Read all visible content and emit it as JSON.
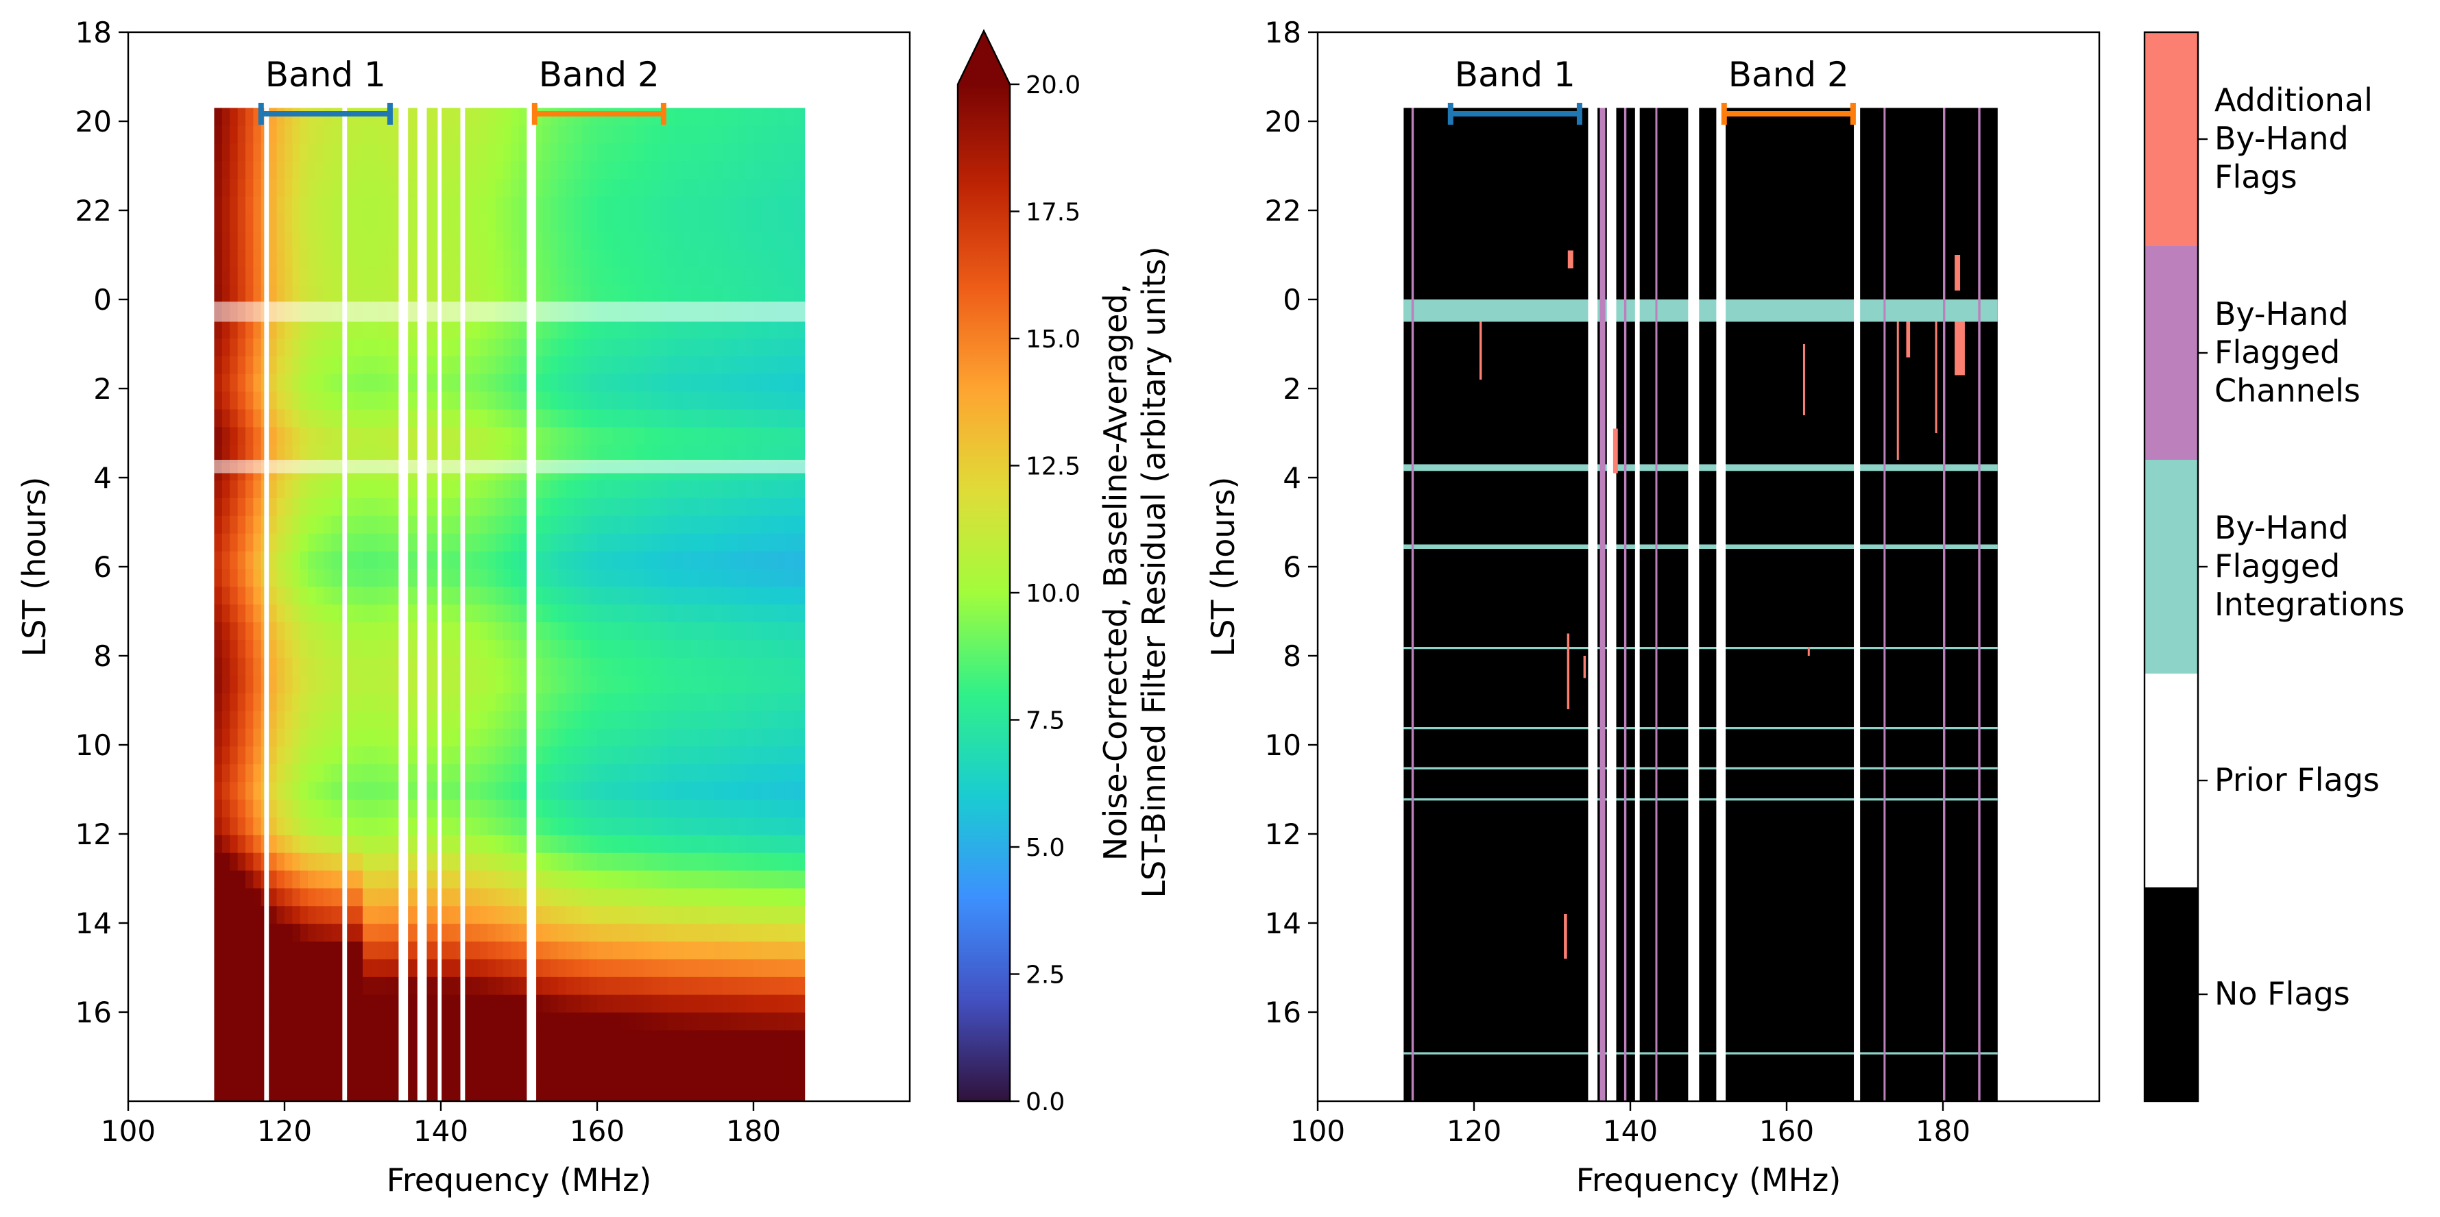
{
  "chart_data": [
    {
      "type": "heatmap",
      "title": "",
      "xlabel": "Frequency (MHz)",
      "ylabel": "LST (hours)",
      "xlim": [
        100,
        200
      ],
      "x_ticks": [
        100,
        120,
        140,
        160,
        180
      ],
      "y_ticks": [
        18,
        20,
        22,
        0,
        2,
        4,
        6,
        8,
        10,
        12,
        14,
        16
      ],
      "y_axis_direction": "LST increases downward; the axis wraps 24 → 0",
      "data_extent": {
        "freq_mhz": [
          111,
          187
        ],
        "lst_hours_wrapped": [
          19.7,
          42
        ]
      },
      "bands": [
        {
          "name": "Band 1",
          "range_mhz": [
            117,
            133.5
          ],
          "color": "#1f77b4"
        },
        {
          "name": "Band 2",
          "range_mhz": [
            152,
            168.5
          ],
          "color": "#ff7f0e"
        }
      ],
      "colorbar": {
        "label_line1": "Noise-Corrected, Baseline-Averaged,",
        "label_line2": "LST-Binned Filter Residual (arbitary units)",
        "range": [
          0,
          20
        ],
        "extend": "max",
        "colormap": "turbo",
        "ticks": [
          "0.0",
          "2.5",
          "5.0",
          "7.5",
          "10.0",
          "12.5",
          "15.0",
          "17.5",
          "20.0"
        ]
      },
      "flagged_channels_mhz": [
        [
          117.4,
          118.0
        ],
        [
          127.4,
          128.0
        ],
        [
          134.6,
          135.8
        ],
        [
          137.0,
          138.2
        ],
        [
          139.6,
          140.1
        ],
        [
          142.5,
          143.1
        ],
        [
          151.0,
          152.2
        ],
        [
          186.6,
          187.2
        ]
      ],
      "flagged_lst_hours": [
        [
          0.05,
          0.5
        ],
        [
          3.6,
          3.9
        ]
      ],
      "residual_profile_by_freq": {
        "freq_mhz": [
          111,
          115,
          119,
          123,
          127,
          131,
          135,
          140,
          145,
          150,
          155,
          160,
          165,
          170,
          175,
          180,
          187
        ],
        "mid_lst_value": [
          18.5,
          15.5,
          12.0,
          10.2,
          9.6,
          9.4,
          9.6,
          9.5,
          9.2,
          8.4,
          7.6,
          7.0,
          6.8,
          6.5,
          6.4,
          6.2,
          6.0
        ]
      },
      "residual_profile_by_lst": {
        "lst_hours_wrapped": [
          19.7,
          22,
          24,
          26,
          27.2,
          28,
          30,
          31.5,
          32.5,
          34,
          35,
          36,
          37,
          38,
          39,
          40,
          42
        ],
        "offset": [
          1.5,
          1.0,
          1.2,
          0.0,
          1.5,
          0.8,
          -0.8,
          0.8,
          1.3,
          0.5,
          -0.3,
          0.6,
          2.0,
          3.5,
          6.0,
          9.0,
          12.0
        ]
      }
    },
    {
      "type": "heatmap",
      "title": "",
      "xlabel": "Frequency (MHz)",
      "ylabel": "LST (hours)",
      "xlim": [
        100,
        200
      ],
      "x_ticks": [
        100,
        120,
        140,
        160,
        180
      ],
      "y_ticks": [
        18,
        20,
        22,
        0,
        2,
        4,
        6,
        8,
        10,
        12,
        14,
        16
      ],
      "data_extent": {
        "freq_mhz": [
          111,
          187
        ],
        "lst_hours_wrapped": [
          19.7,
          42
        ]
      },
      "bands": [
        {
          "name": "Band 1",
          "range_mhz": [
            117,
            133.5
          ],
          "color": "#1f77b4"
        },
        {
          "name": "Band 2",
          "range_mhz": [
            152,
            168.5
          ],
          "color": "#ff7f0e"
        }
      ],
      "categories": [
        {
          "name": "No Flags",
          "label_lines": [
            "No Flags"
          ],
          "color": "#000000"
        },
        {
          "name": "Prior Flags",
          "label_lines": [
            "Prior Flags"
          ],
          "color": "#ffffff"
        },
        {
          "name": "By-Hand Flagged Integrations",
          "label_lines": [
            "By-Hand",
            "Flagged",
            "Integrations"
          ],
          "color": "#8dd3c7"
        },
        {
          "name": "By-Hand Flagged Channels",
          "label_lines": [
            "By-Hand",
            "Flagged",
            "Channels"
          ],
          "color": "#bc80bd"
        },
        {
          "name": "Additional By-Hand Flags",
          "label_lines": [
            "Additional",
            "By-Hand",
            "Flags"
          ],
          "color": "#fb8072"
        }
      ],
      "prior_flag_channels_mhz": [
        [
          134.6,
          135.8
        ],
        [
          137.0,
          138.2
        ],
        [
          140.6,
          141.2
        ],
        [
          147.4,
          148.8
        ],
        [
          151.0,
          152.2
        ],
        [
          168.6,
          169.4
        ]
      ],
      "hand_flagged_channels_mhz": [
        [
          112.0,
          112.3
        ],
        [
          136.1,
          136.8
        ],
        [
          139.2,
          139.5
        ],
        [
          143.2,
          143.4
        ],
        [
          172.4,
          172.6
        ],
        [
          180.0,
          180.3
        ],
        [
          184.5,
          184.8
        ]
      ],
      "hand_flagged_lst_hours": [
        [
          0.0,
          0.5
        ],
        [
          3.7,
          3.85
        ],
        [
          5.5,
          5.6
        ],
        [
          7.8,
          7.85
        ],
        [
          9.6,
          9.65
        ],
        [
          10.5,
          10.55
        ],
        [
          11.2,
          11.25
        ],
        [
          16.9,
          16.95
        ]
      ],
      "additional_flags": [
        {
          "freq_mhz": [
            132.0,
            132.7
          ],
          "lst_hours": [
            22.9,
            23.3
          ]
        },
        {
          "freq_mhz": [
            137.8,
            138.4
          ],
          "lst_hours": [
            2.9,
            3.9
          ]
        },
        {
          "freq_mhz": [
            175.3,
            175.8
          ],
          "lst_hours": [
            0.5,
            1.3
          ]
        },
        {
          "freq_mhz": [
            181.5,
            182.8
          ],
          "lst_hours": [
            0.5,
            1.7
          ]
        },
        {
          "freq_mhz": [
            181.5,
            182.2
          ],
          "lst_hours": [
            23.0,
            23.8
          ]
        },
        {
          "freq_mhz": [
            120.7,
            121.0
          ],
          "lst_hours": [
            0.5,
            1.8
          ]
        },
        {
          "freq_mhz": [
            131.9,
            132.2
          ],
          "lst_hours": [
            7.5,
            9.2
          ]
        },
        {
          "freq_mhz": [
            131.5,
            131.9
          ],
          "lst_hours": [
            13.8,
            14.8
          ]
        },
        {
          "freq_mhz": [
            162.1,
            162.3
          ],
          "lst_hours": [
            1.0,
            2.6
          ]
        },
        {
          "freq_mhz": [
            162.7,
            162.9
          ],
          "lst_hours": [
            7.8,
            8.0
          ]
        },
        {
          "freq_mhz": [
            174.1,
            174.3
          ],
          "lst_hours": [
            0.5,
            3.6
          ]
        },
        {
          "freq_mhz": [
            134.0,
            134.3
          ],
          "lst_hours": [
            8.0,
            8.5
          ]
        },
        {
          "freq_mhz": [
            179.0,
            179.2
          ],
          "lst_hours": [
            0.5,
            3.0
          ]
        }
      ]
    }
  ]
}
